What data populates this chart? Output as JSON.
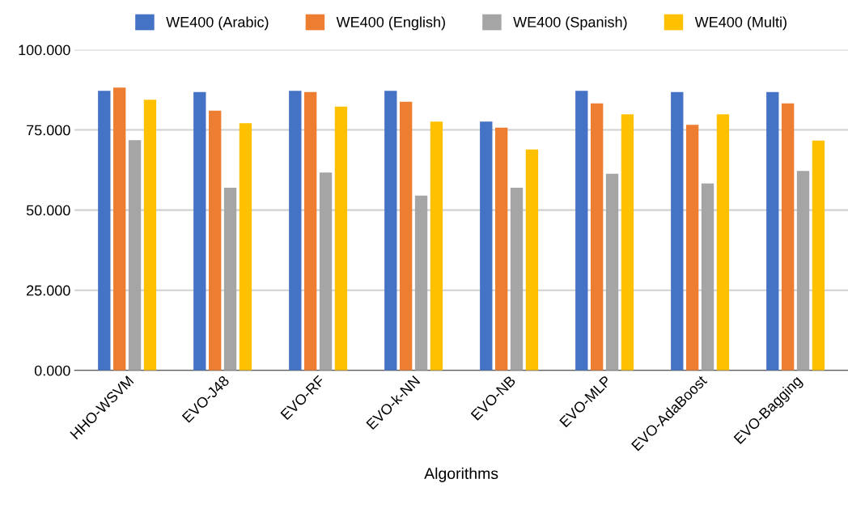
{
  "chart_data": {
    "type": "bar",
    "xlabel": "Algorithms",
    "categories": [
      "HHO-WSVM",
      "EVO-J48",
      "EVO-RF",
      "EVO-k-NN",
      "EVO-NB",
      "EVO-MLP",
      "EVO-AdaBoost",
      "EVO-Bagging"
    ],
    "series": [
      {
        "name": "WE400 (Arabic)",
        "color": "#4472c4",
        "values": [
          87.2,
          86.8,
          87.2,
          87.2,
          77.6,
          87.2,
          86.8,
          86.8
        ]
      },
      {
        "name": "WE400 (English)",
        "color": "#ed7d31",
        "values": [
          88.2,
          81.0,
          86.8,
          83.8,
          75.7,
          83.3,
          76.6,
          83.3
        ]
      },
      {
        "name": "WE400 (Spanish)",
        "color": "#a5a5a5",
        "values": [
          71.8,
          57.0,
          61.7,
          54.5,
          57.0,
          61.3,
          58.3,
          62.2
        ]
      },
      {
        "name": "WE400 (Multi)",
        "color": "#ffc000",
        "values": [
          84.4,
          77.1,
          82.3,
          77.6,
          68.9,
          79.9,
          79.9,
          71.7
        ]
      }
    ],
    "ylim": [
      0,
      100
    ],
    "yticks": [
      {
        "value": 0,
        "label": "0.000"
      },
      {
        "value": 25,
        "label": "25.000"
      },
      {
        "value": 50,
        "label": "50.000"
      },
      {
        "value": 75,
        "label": "75.000"
      },
      {
        "value": 100,
        "label": "100.000"
      }
    ],
    "grid": "y",
    "legend": "top"
  }
}
